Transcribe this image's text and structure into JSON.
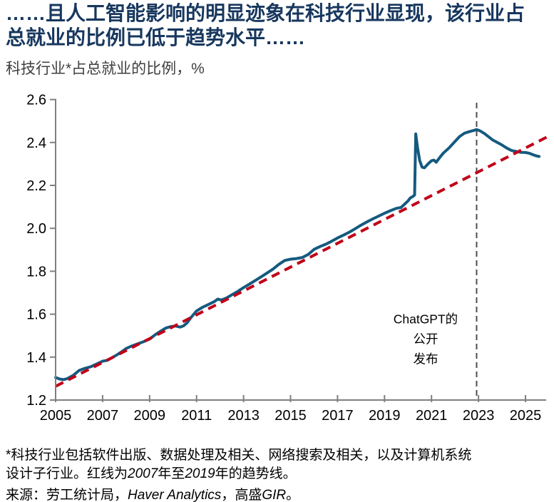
{
  "header": {
    "title_lines": [
      "……且人工智能影响的明显迹象在科技行业显现，该行业占",
      "总就业的比例已低于趋势水平……"
    ],
    "subtitle": "科技行业*占总就业的比例，%"
  },
  "chart_data": {
    "type": "line",
    "title": "科技行业*占总就业的比例，%",
    "xlabel": "",
    "ylabel": "%",
    "xlim": [
      2005,
      2025.9
    ],
    "ylim": [
      1.2,
      2.6
    ],
    "grid": false,
    "x_ticks": [
      2005,
      2007,
      2009,
      2011,
      2013,
      2015,
      2017,
      2019,
      2021,
      2023,
      2025
    ],
    "y_ticks": [
      1.2,
      1.4,
      1.6,
      1.8,
      2.0,
      2.2,
      2.4,
      2.6
    ],
    "axis_color": "#7f7f7f",
    "series": [
      {
        "name": "科技行业占总就业的比例",
        "style": "solid",
        "color": "#155a7f",
        "points": [
          [
            2005.0,
            1.305
          ],
          [
            2005.17,
            1.298
          ],
          [
            2005.33,
            1.295
          ],
          [
            2005.5,
            1.3
          ],
          [
            2005.75,
            1.315
          ],
          [
            2006.0,
            1.338
          ],
          [
            2006.25,
            1.348
          ],
          [
            2006.5,
            1.355
          ],
          [
            2006.75,
            1.368
          ],
          [
            2007.0,
            1.381
          ],
          [
            2007.2,
            1.385
          ],
          [
            2007.4,
            1.397
          ],
          [
            2007.6,
            1.41
          ],
          [
            2007.8,
            1.424
          ],
          [
            2008.0,
            1.44
          ],
          [
            2008.25,
            1.452
          ],
          [
            2008.5,
            1.462
          ],
          [
            2008.75,
            1.472
          ],
          [
            2009.0,
            1.484
          ],
          [
            2009.25,
            1.505
          ],
          [
            2009.5,
            1.523
          ],
          [
            2009.7,
            1.536
          ],
          [
            2009.9,
            1.542
          ],
          [
            2010.1,
            1.545
          ],
          [
            2010.3,
            1.54
          ],
          [
            2010.45,
            1.546
          ],
          [
            2010.6,
            1.56
          ],
          [
            2010.75,
            1.583
          ],
          [
            2011.0,
            1.615
          ],
          [
            2011.25,
            1.632
          ],
          [
            2011.5,
            1.645
          ],
          [
            2011.75,
            1.658
          ],
          [
            2011.9,
            1.67
          ],
          [
            2012.05,
            1.666
          ],
          [
            2012.25,
            1.674
          ],
          [
            2012.5,
            1.69
          ],
          [
            2012.75,
            1.706
          ],
          [
            2013.0,
            1.724
          ],
          [
            2013.25,
            1.74
          ],
          [
            2013.5,
            1.757
          ],
          [
            2013.75,
            1.774
          ],
          [
            2014.0,
            1.792
          ],
          [
            2014.25,
            1.81
          ],
          [
            2014.5,
            1.832
          ],
          [
            2014.75,
            1.85
          ],
          [
            2015.0,
            1.856
          ],
          [
            2015.25,
            1.859
          ],
          [
            2015.5,
            1.864
          ],
          [
            2015.75,
            1.878
          ],
          [
            2016.0,
            1.902
          ],
          [
            2016.25,
            1.915
          ],
          [
            2016.5,
            1.926
          ],
          [
            2016.75,
            1.94
          ],
          [
            2017.0,
            1.955
          ],
          [
            2017.25,
            1.968
          ],
          [
            2017.5,
            1.982
          ],
          [
            2017.75,
            1.998
          ],
          [
            2018.0,
            2.015
          ],
          [
            2018.25,
            2.03
          ],
          [
            2018.5,
            2.044
          ],
          [
            2018.75,
            2.057
          ],
          [
            2019.0,
            2.07
          ],
          [
            2019.25,
            2.082
          ],
          [
            2019.5,
            2.093
          ],
          [
            2019.7,
            2.097
          ],
          [
            2019.85,
            2.112
          ],
          [
            2020.0,
            2.128
          ],
          [
            2020.1,
            2.142
          ],
          [
            2020.2,
            2.148
          ],
          [
            2020.28,
            2.155
          ],
          [
            2020.33,
            2.44
          ],
          [
            2020.4,
            2.38
          ],
          [
            2020.5,
            2.315
          ],
          [
            2020.6,
            2.285
          ],
          [
            2020.7,
            2.282
          ],
          [
            2020.85,
            2.3
          ],
          [
            2021.0,
            2.315
          ],
          [
            2021.1,
            2.318
          ],
          [
            2021.2,
            2.308
          ],
          [
            2021.35,
            2.33
          ],
          [
            2021.5,
            2.35
          ],
          [
            2021.75,
            2.375
          ],
          [
            2022.0,
            2.405
          ],
          [
            2022.2,
            2.428
          ],
          [
            2022.4,
            2.443
          ],
          [
            2022.6,
            2.45
          ],
          [
            2022.8,
            2.456
          ],
          [
            2022.92,
            2.46
          ],
          [
            2023.05,
            2.455
          ],
          [
            2023.25,
            2.442
          ],
          [
            2023.45,
            2.425
          ],
          [
            2023.6,
            2.412
          ],
          [
            2023.8,
            2.4
          ],
          [
            2024.0,
            2.388
          ],
          [
            2024.2,
            2.374
          ],
          [
            2024.4,
            2.363
          ],
          [
            2024.6,
            2.358
          ],
          [
            2024.8,
            2.354
          ],
          [
            2025.0,
            2.353
          ],
          [
            2025.15,
            2.35
          ],
          [
            2025.3,
            2.344
          ],
          [
            2025.45,
            2.338
          ],
          [
            2025.58,
            2.335
          ]
        ]
      },
      {
        "name": "趋势线（2007年至2019年）",
        "style": "dashed",
        "color": "#c00018",
        "points": [
          [
            2005.0,
            1.264
          ],
          [
            2026.0,
            2.43
          ]
        ]
      }
    ],
    "vline": {
      "x": 2022.92,
      "color": "#4d4d4d"
    },
    "annotation": {
      "lines": [
        "ChatGPT的",
        "公开",
        "发布"
      ],
      "x": 2020.75,
      "y": 1.47
    }
  },
  "footnotes": {
    "line1_segments": [
      {
        "text": "*科技行业包括软件出版、数据处理及相关、网络搜索及相关，以及计算机系统",
        "italic": false
      }
    ],
    "line2_segments": [
      {
        "text": "设计子行业。红线为",
        "italic": false
      },
      {
        "text": "2007",
        "italic": true
      },
      {
        "text": "年至",
        "italic": false
      },
      {
        "text": "2019",
        "italic": true
      },
      {
        "text": "年的趋势线。",
        "italic": false
      }
    ],
    "source_segments": [
      {
        "text": "来源：劳工统计局，",
        "italic": false
      },
      {
        "text": "Haver Analytics",
        "italic": true
      },
      {
        "text": "，高盛",
        "italic": false
      },
      {
        "text": "GIR",
        "italic": true
      },
      {
        "text": "。",
        "italic": false
      }
    ]
  }
}
